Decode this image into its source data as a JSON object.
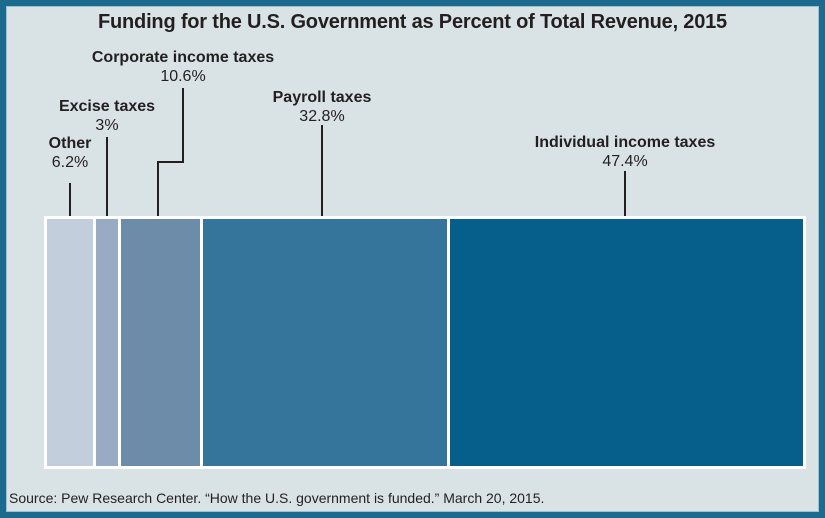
{
  "title": "Funding for the U.S. Government as Percent of Total Revenue, 2015",
  "source_citation": "Source: Pew Research Center. “How the U.S. government is funded.” March 20, 2015.",
  "chart_data": {
    "type": "bar",
    "subtype": "single horizontal 100% stacked bar",
    "title": "Funding for the U.S. Government as Percent of Total Revenue, 2015",
    "categories": [
      "Other",
      "Excise taxes",
      "Corporate income taxes",
      "Payroll taxes",
      "Individual income taxes"
    ],
    "values": [
      6.2,
      3,
      10.6,
      32.8,
      47.4
    ],
    "value_labels": [
      "6.2%",
      "3%",
      "10.6%",
      "32.8%",
      "47.4%"
    ],
    "unit": "percent of total revenue",
    "total": 100,
    "grid": false,
    "axes": false,
    "legend_position": "none",
    "annotation_style": "labels above bar connected by leader lines",
    "source": "Source: Pew Research Center. “How the U.S. government is funded.” March 20, 2015."
  },
  "segments": [
    {
      "label": "Other",
      "pct": "6.2%",
      "value": 6.2,
      "color": "#c3cedc"
    },
    {
      "label": "Excise taxes",
      "pct": "3%",
      "value": 3,
      "color": "#98abc3"
    },
    {
      "label": "Corporate income taxes",
      "pct": "10.6%",
      "value": 10.6,
      "color": "#6d8caa"
    },
    {
      "label": "Payroll taxes",
      "pct": "32.8%",
      "value": 32.8,
      "color": "#35749b"
    },
    {
      "label": "Individual income taxes",
      "pct": "47.4%",
      "value": 47.4,
      "color": "#065f8a"
    }
  ],
  "colors": {
    "background": "#d9e2e5",
    "frame_border": "#1d6a8f",
    "text": "#231f20",
    "leader_line": "#231f20",
    "bar_border": "#ffffff"
  }
}
